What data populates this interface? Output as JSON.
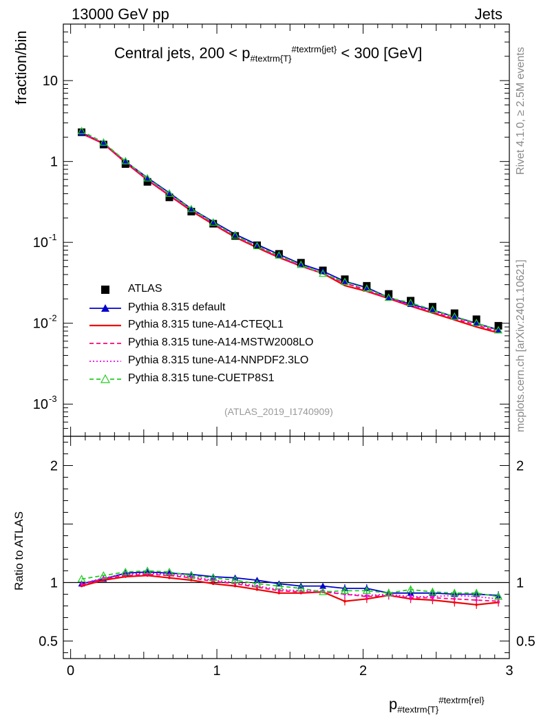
{
  "header": {
    "left": "13000 GeV pp",
    "right": "Jets"
  },
  "side_labels": {
    "rivet": "Rivet 4.1.0, ≥ 2.5M events",
    "mcplots": "mcplots.cern.ch [arXiv:2401.10621]"
  },
  "reference": "(ATLAS_2019_I1740909)",
  "chart_data": [
    {
      "type": "line",
      "title": "Central jets, 200 < p_{#textrm{T}}^{#textrm{jet}} < 300 [GeV]",
      "title_parts": {
        "pre": "Central jets, 200 < p",
        "sub": "#textrm{T}",
        "sup": "#textrm{jet}",
        "post": "< 300 [GeV]"
      },
      "ylabel": "fraction/bin",
      "yscale": "log",
      "ylim": [
        0.0004,
        50
      ],
      "xlim": [
        -0.05,
        3.0
      ],
      "yticks": [
        {
          "v": 10,
          "label": "10"
        },
        {
          "v": 1,
          "label": "1"
        },
        {
          "v": 0.1,
          "label": "10^{-1}"
        },
        {
          "v": 0.01,
          "label": "10^{-2}"
        },
        {
          "v": 0.001,
          "label": "10^{-3}"
        }
      ],
      "x": [
        0.075,
        0.225,
        0.375,
        0.525,
        0.675,
        0.825,
        0.975,
        1.125,
        1.275,
        1.425,
        1.575,
        1.725,
        1.875,
        2.025,
        2.175,
        2.325,
        2.475,
        2.625,
        2.775,
        2.925
      ],
      "series": [
        {
          "name": "ATLAS",
          "color": "#000000",
          "marker": "square",
          "values": [
            2.3,
            1.62,
            0.93,
            0.56,
            0.36,
            0.24,
            0.17,
            0.12,
            0.092,
            0.072,
            0.056,
            0.045,
            0.035,
            0.029,
            0.023,
            0.019,
            0.016,
            0.0133,
            0.0112,
            0.0093
          ]
        },
        {
          "name": "Pythia 8.315 default",
          "color": "#0000cc",
          "style": "solid",
          "marker": "triangle",
          "values": [
            2.28,
            1.67,
            1.0,
            0.63,
            0.41,
            0.26,
            0.18,
            0.126,
            0.094,
            0.071,
            0.054,
            0.044,
            0.033,
            0.0276,
            0.0208,
            0.0172,
            0.0146,
            0.012,
            0.01,
            0.0083
          ]
        },
        {
          "name": "Pythia 8.315 tune-A14-CTEQL1",
          "color": "#ee0000",
          "style": "solid",
          "marker": "none",
          "values": [
            2.22,
            1.66,
            0.97,
            0.59,
            0.38,
            0.245,
            0.167,
            0.116,
            0.086,
            0.065,
            0.0508,
            0.0413,
            0.0292,
            0.0248,
            0.0202,
            0.0163,
            0.0134,
            0.011,
            0.009,
            0.0076
          ]
        },
        {
          "name": "Pythia 8.315 tune-A14-MSTW2008LO",
          "color": "#ff0077",
          "style": "dashed",
          "marker": "none",
          "values": [
            2.24,
            1.68,
            0.98,
            0.595,
            0.385,
            0.25,
            0.17,
            0.118,
            0.088,
            0.066,
            0.0513,
            0.0416,
            0.0312,
            0.0255,
            0.0204,
            0.0165,
            0.0138,
            0.0114,
            0.0095,
            0.0078
          ]
        },
        {
          "name": "Pythia 8.315 tune-A14-NNPDF2.3LO",
          "color": "#ee00ee",
          "style": "dotted",
          "marker": "none",
          "values": [
            2.26,
            1.69,
            0.99,
            0.6,
            0.387,
            0.252,
            0.172,
            0.12,
            0.089,
            0.067,
            0.0518,
            0.0418,
            0.0315,
            0.0258,
            0.0206,
            0.0168,
            0.0141,
            0.0118,
            0.0099,
            0.008
          ]
        },
        {
          "name": "Pythia 8.315 tune-CUETP8S1",
          "color": "#22cc22",
          "style": "dashed",
          "marker": "open-triangle",
          "values": [
            2.38,
            1.72,
            1.01,
            0.62,
            0.4,
            0.258,
            0.176,
            0.122,
            0.09,
            0.069,
            0.0528,
            0.041,
            0.0325,
            0.0268,
            0.0207,
            0.0179,
            0.0147,
            0.0121,
            0.0101,
            0.0082
          ]
        }
      ]
    },
    {
      "type": "line",
      "ylabel": "Ratio to ATLAS",
      "xlabel": "p_{#textrm{T}}^{#textrm{rel}}",
      "xlabel_parts": {
        "pre": "p",
        "sub": "#textrm{T}",
        "sup": "#textrm{rel}"
      },
      "ylim": [
        0.35,
        2.25
      ],
      "xlim": [
        -0.05,
        3.0
      ],
      "yticks": [
        {
          "v": 2,
          "label": "2"
        },
        {
          "v": 1,
          "label": "1"
        },
        {
          "v": 0.5,
          "label": "0.5"
        }
      ],
      "xticks": [
        {
          "v": 0,
          "label": "0"
        },
        {
          "v": 1,
          "label": "1"
        },
        {
          "v": 2,
          "label": "2"
        },
        {
          "v": 3,
          "label": "3"
        }
      ],
      "x": [
        0.075,
        0.225,
        0.375,
        0.525,
        0.675,
        0.825,
        0.975,
        1.125,
        1.275,
        1.425,
        1.575,
        1.725,
        1.875,
        2.025,
        2.175,
        2.325,
        2.475,
        2.625,
        2.775,
        2.925
      ],
      "series": [
        {
          "name": "Pythia 8.315 default",
          "color": "#0000cc",
          "values": [
            0.99,
            1.03,
            1.08,
            1.09,
            1.08,
            1.07,
            1.05,
            1.04,
            1.02,
            0.99,
            0.97,
            0.97,
            0.95,
            0.95,
            0.91,
            0.91,
            0.91,
            0.9,
            0.9,
            0.89
          ]
        },
        {
          "name": "Pythia 8.315 tune-A14-CTEQL1",
          "color": "#ee0000",
          "values": [
            0.97,
            1.02,
            1.05,
            1.06,
            1.04,
            1.02,
            0.99,
            0.97,
            0.94,
            0.91,
            0.91,
            0.92,
            0.84,
            0.86,
            0.89,
            0.86,
            0.85,
            0.83,
            0.81,
            0.83
          ]
        },
        {
          "name": "Pythia 8.315 tune-A14-MSTW2008LO",
          "color": "#ff0077",
          "values": [
            0.98,
            1.03,
            1.06,
            1.07,
            1.06,
            1.04,
            1.01,
            0.99,
            0.96,
            0.93,
            0.92,
            0.92,
            0.9,
            0.88,
            0.89,
            0.87,
            0.87,
            0.86,
            0.85,
            0.84
          ]
        },
        {
          "name": "Pythia 8.315 tune-A14-NNPDF2.3LO",
          "color": "#ee00ee",
          "values": [
            0.99,
            1.04,
            1.07,
            1.08,
            1.07,
            1.05,
            1.02,
            1.0,
            0.97,
            0.94,
            0.93,
            0.93,
            0.9,
            0.89,
            0.9,
            0.88,
            0.88,
            0.89,
            0.88,
            0.86
          ]
        },
        {
          "name": "Pythia 8.315 tune-CUETP8S1",
          "color": "#22cc22",
          "values": [
            1.03,
            1.06,
            1.09,
            1.1,
            1.09,
            1.06,
            1.04,
            1.02,
            0.99,
            0.97,
            0.95,
            0.92,
            0.93,
            0.93,
            0.91,
            0.94,
            0.92,
            0.91,
            0.91,
            0.88
          ]
        }
      ]
    }
  ]
}
